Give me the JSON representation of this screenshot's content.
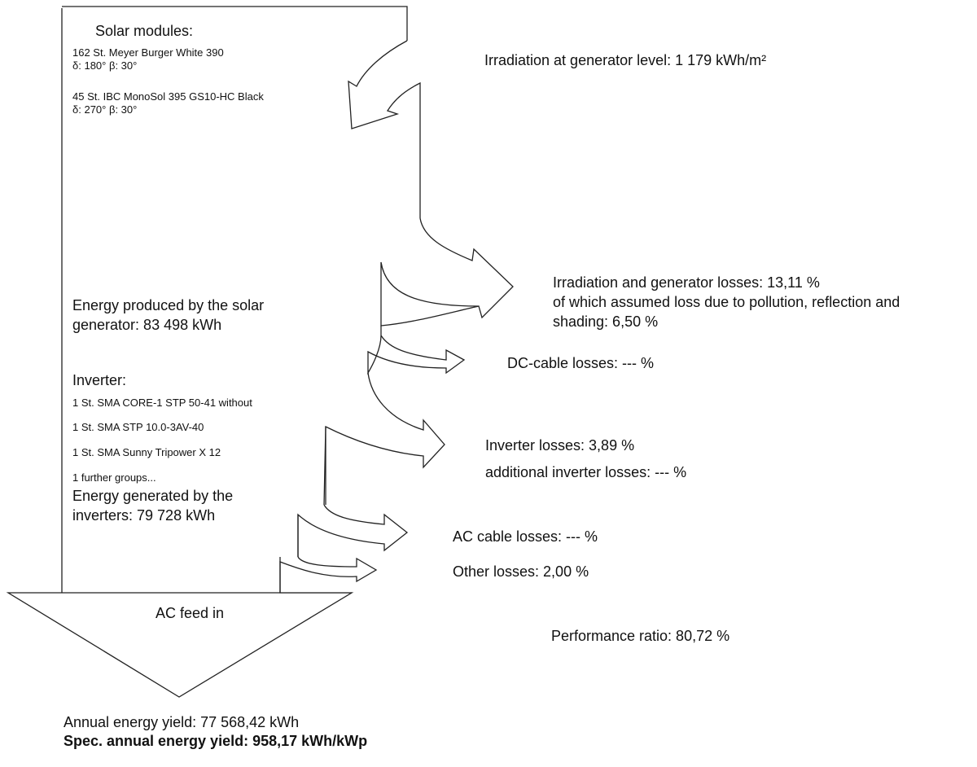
{
  "modules": {
    "heading": "Solar modules:",
    "group1_line1": "162 St. Meyer Burger White 390",
    "group1_line2": "δ: 180° β: 30°",
    "group2_line1": "45 St. IBC MonoSol 395 GS10-HC Black",
    "group2_line2": "δ: 270° β: 30°"
  },
  "irradiation": "Irradiation at generator level: 1 179 kWh/m²",
  "generator_losses": {
    "line1": "Irradiation and generator losses: 13,11 %",
    "line2": "of which assumed loss due to pollution, reflection and",
    "line3": "shading: 6,50 %"
  },
  "energy_produced": {
    "line1": "Energy produced by the solar",
    "line2": "generator: 83 498 kWh"
  },
  "dc_cable_losses": "DC-cable losses: --- %",
  "inverter": {
    "heading": "Inverter:",
    "items": [
      "1 St. SMA CORE-1  STP 50-41 without",
      "1 St. SMA STP 10.0-3AV-40",
      "1 St. SMA Sunny Tripower X 12",
      "1 further groups..."
    ]
  },
  "inverter_losses": "Inverter losses: 3,89 %",
  "additional_inverter_losses": "additional inverter losses: --- %",
  "energy_generated": {
    "line1": "Energy generated by the",
    "line2": "inverters: 79 728 kWh"
  },
  "ac_cable_losses": "AC cable losses: --- %",
  "other_losses": "Other losses: 2,00 %",
  "ac_feed_in": "AC feed in",
  "performance_ratio": "Performance ratio: 80,72 %",
  "annual_yield": "Annual energy yield: 77 568,42 kWh",
  "spec_annual_yield": "Spec. annual energy yield: 958,17 kWh/kWp"
}
